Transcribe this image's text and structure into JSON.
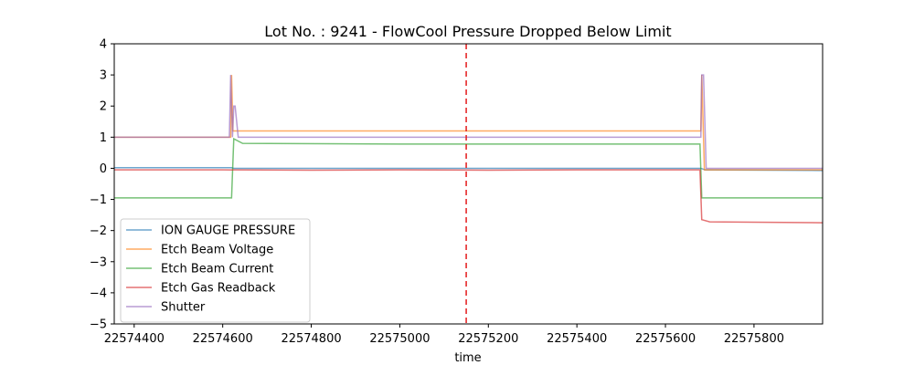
{
  "chart_data": {
    "type": "line",
    "title": "Lot No. : 9241 - FlowCool Pressure Dropped Below Limit",
    "xlabel": "time",
    "ylabel": "",
    "xlim": [
      22574355,
      22575955
    ],
    "ylim": [
      -5,
      4
    ],
    "xticks": [
      22574400,
      22574600,
      22574800,
      22575000,
      22575200,
      22575400,
      22575600,
      22575800
    ],
    "yticks": [
      -5,
      -4,
      -3,
      -2,
      -1,
      0,
      1,
      2,
      3,
      4
    ],
    "grid": false,
    "legend_position": "lower-left",
    "annotations": [
      {
        "type": "vline",
        "x": 22575150,
        "color": "#e41a1c",
        "style": "dashed"
      }
    ],
    "series": [
      {
        "name": "ION GAUGE PRESSURE",
        "color": "#1f77b4",
        "points": [
          [
            22574355,
            0.02
          ],
          [
            22574620,
            0.02
          ],
          [
            22574625,
            0.0
          ],
          [
            22575680,
            0.0
          ],
          [
            22575690,
            -0.05
          ],
          [
            22575955,
            -0.07
          ]
        ]
      },
      {
        "name": "Etch Beam Voltage",
        "color": "#ff7f0e",
        "points": [
          [
            22574355,
            1.0
          ],
          [
            22574618,
            1.0
          ],
          [
            22574620,
            3.0
          ],
          [
            22574623,
            1.2
          ],
          [
            22575680,
            1.2
          ],
          [
            22575682,
            3.0
          ],
          [
            22575688,
            -0.05
          ],
          [
            22575955,
            -0.05
          ]
        ]
      },
      {
        "name": "Etch Beam Current",
        "color": "#2ca02c",
        "points": [
          [
            22574355,
            -0.95
          ],
          [
            22574620,
            -0.95
          ],
          [
            22574625,
            0.95
          ],
          [
            22574645,
            0.8
          ],
          [
            22575000,
            0.78
          ],
          [
            22575678,
            0.78
          ],
          [
            22575682,
            -0.95
          ],
          [
            22575955,
            -0.95
          ]
        ]
      },
      {
        "name": "Etch Gas Readback",
        "color": "#d62728",
        "points": [
          [
            22574355,
            -0.05
          ],
          [
            22574600,
            -0.05
          ],
          [
            22574800,
            -0.06
          ],
          [
            22575000,
            -0.05
          ],
          [
            22575200,
            -0.06
          ],
          [
            22575400,
            -0.05
          ],
          [
            22575678,
            -0.05
          ],
          [
            22575682,
            -1.65
          ],
          [
            22575700,
            -1.72
          ],
          [
            22575955,
            -1.75
          ]
        ]
      },
      {
        "name": "Shutter",
        "color": "#9467bd",
        "points": [
          [
            22574355,
            1.0
          ],
          [
            22574615,
            1.0
          ],
          [
            22574618,
            3.0
          ],
          [
            22574622,
            1.0
          ],
          [
            22574625,
            2.0
          ],
          [
            22574628,
            2.0
          ],
          [
            22574635,
            1.0
          ],
          [
            22575680,
            1.0
          ],
          [
            22575682,
            3.0
          ],
          [
            22575686,
            3.0
          ],
          [
            22575692,
            0.0
          ],
          [
            22575955,
            0.0
          ]
        ]
      }
    ]
  }
}
